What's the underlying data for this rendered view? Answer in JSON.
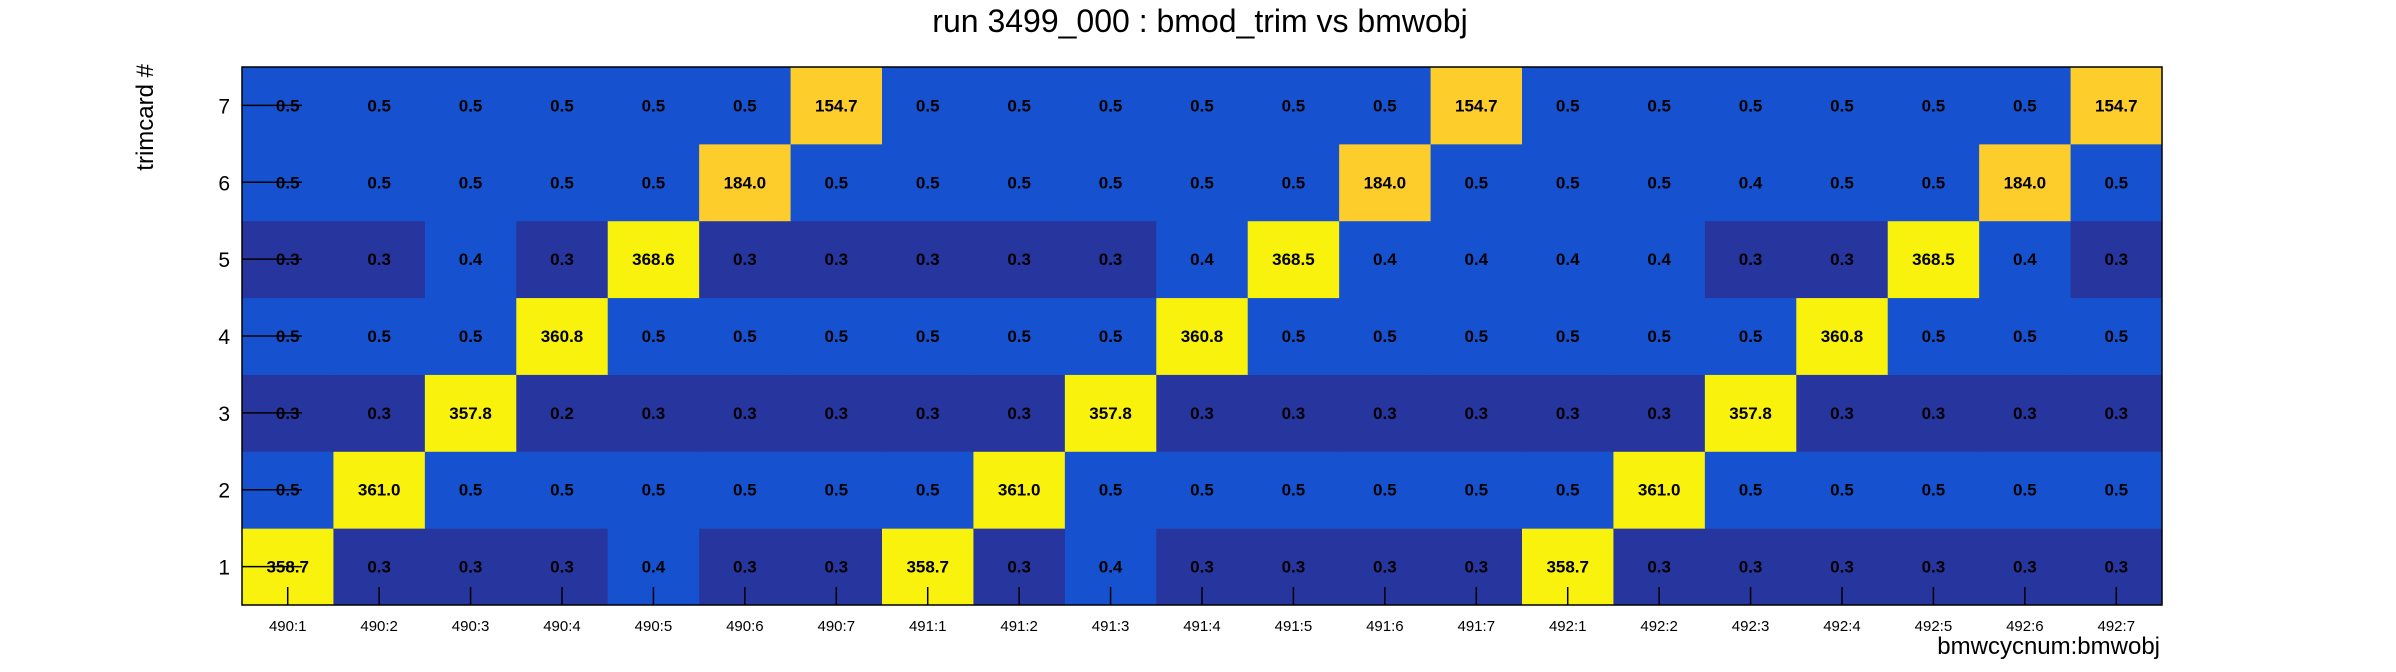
{
  "chart_data": {
    "type": "heatmap",
    "title": "run 3499_000 : bmod_trim vs bmwobj",
    "xlabel": "bmwcycnum:bmwobj",
    "ylabel": "trimcard #",
    "x_categories": [
      "490:1",
      "490:2",
      "490:3",
      "490:4",
      "490:5",
      "490:6",
      "490:7",
      "491:1",
      "491:2",
      "491:3",
      "491:4",
      "491:5",
      "491:6",
      "491:7",
      "492:1",
      "492:2",
      "492:3",
      "492:4",
      "492:5",
      "492:6",
      "492:7"
    ],
    "y_categories": [
      "1",
      "2",
      "3",
      "4",
      "5",
      "6",
      "7"
    ],
    "value_labels_shown": true,
    "z": [
      [
        "358.7",
        "0.3",
        "0.3",
        "0.3",
        "0.4",
        "0.3",
        "0.3",
        "358.7",
        "0.3",
        "0.4",
        "0.3",
        "0.3",
        "0.3",
        "0.3",
        "358.7",
        "0.3",
        "0.3",
        "0.3",
        "0.3",
        "0.3",
        "0.3"
      ],
      [
        "0.5",
        "361.0",
        "0.5",
        "0.5",
        "0.5",
        "0.5",
        "0.5",
        "0.5",
        "361.0",
        "0.5",
        "0.5",
        "0.5",
        "0.5",
        "0.5",
        "0.5",
        "361.0",
        "0.5",
        "0.5",
        "0.5",
        "0.5",
        "0.5"
      ],
      [
        "0.3",
        "0.3",
        "357.8",
        "0.2",
        "0.3",
        "0.3",
        "0.3",
        "0.3",
        "0.3",
        "357.8",
        "0.3",
        "0.3",
        "0.3",
        "0.3",
        "0.3",
        "0.3",
        "357.8",
        "0.3",
        "0.3",
        "0.3",
        "0.3"
      ],
      [
        "0.5",
        "0.5",
        "0.5",
        "360.8",
        "0.5",
        "0.5",
        "0.5",
        "0.5",
        "0.5",
        "0.5",
        "360.8",
        "0.5",
        "0.5",
        "0.5",
        "0.5",
        "0.5",
        "0.5",
        "360.8",
        "0.5",
        "0.5",
        "0.5"
      ],
      [
        "0.3",
        "0.3",
        "0.4",
        "0.3",
        "368.6",
        "0.3",
        "0.3",
        "0.3",
        "0.3",
        "0.3",
        "0.4",
        "368.5",
        "0.4",
        "0.4",
        "0.4",
        "0.4",
        "0.3",
        "0.3",
        "368.5",
        "0.4",
        "0.3"
      ],
      [
        "0.5",
        "0.5",
        "0.5",
        "0.5",
        "0.5",
        "184.0",
        "0.5",
        "0.5",
        "0.5",
        "0.5",
        "0.5",
        "0.5",
        "184.0",
        "0.5",
        "0.5",
        "0.5",
        "0.4",
        "0.5",
        "0.5",
        "184.0",
        "0.5"
      ],
      [
        "0.5",
        "0.5",
        "0.5",
        "0.5",
        "0.5",
        "0.5",
        "154.7",
        "0.5",
        "0.5",
        "0.5",
        "0.5",
        "0.5",
        "0.5",
        "154.7",
        "0.5",
        "0.5",
        "0.5",
        "0.5",
        "0.5",
        "0.5",
        "154.7"
      ]
    ],
    "colors": {
      "low": "#27359e",
      "mid": "#1652cf",
      "high_mid": "#fdcd2c",
      "high": "#f8f20c"
    }
  }
}
